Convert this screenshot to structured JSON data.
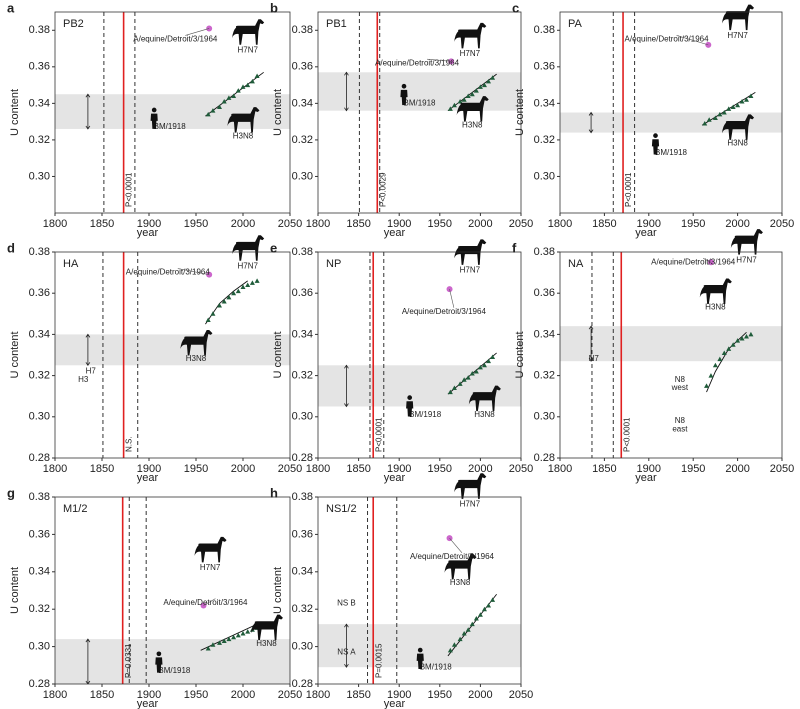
{
  "chart_data": [
    {
      "type": "scatter",
      "letter": "a",
      "title": "PB2",
      "xlabel": "year",
      "ylabel": "U content",
      "xlim": [
        1800,
        2050
      ],
      "xticks": [
        1800,
        1850,
        1900,
        1950,
        2000,
        2050
      ],
      "ylim": [
        0.28,
        0.39
      ],
      "yticks": [
        {
          "value": 0.3,
          "label": "0.30"
        },
        0.32,
        0.34,
        0.36,
        0.38
      ],
      "band": [
        0.326,
        0.345
      ],
      "dashed_lines": [
        1852,
        1885
      ],
      "red_line": 1873,
      "p_label": "P<0.0001",
      "series": [
        {
          "name": "H3N8",
          "color": "#1f5c3a",
          "x": [
            1963,
            1968,
            1975,
            1980,
            1985,
            1990,
            1995,
            2000,
            2005,
            2010,
            2015
          ],
          "values": [
            0.334,
            0.336,
            0.338,
            0.341,
            0.343,
            0.344,
            0.347,
            0.349,
            0.35,
            0.352,
            0.355
          ]
        },
        {
          "name": "A/equine/Detroit/3/1964",
          "color": "#cc66cc",
          "x": [
            1964
          ],
          "values": [
            0.381
          ]
        }
      ],
      "fit_x": [
        1960,
        2022
      ],
      "fit_values": [
        0.333,
        0.357
      ],
      "annotations": [
        "H7N7",
        "BM/1918"
      ]
    },
    {
      "type": "scatter",
      "letter": "b",
      "title": "PB1",
      "xlabel": "year",
      "ylabel": "U content",
      "xlim": [
        1800,
        2050
      ],
      "xticks": [
        1800,
        1850,
        1900,
        1950,
        2000,
        2050
      ],
      "ylim": [
        0.28,
        0.39
      ],
      "yticks": [
        {
          "value": 0.3,
          "label": "0.30"
        },
        0.32,
        0.34,
        0.36,
        0.38
      ],
      "band": [
        0.336,
        0.357
      ],
      "dashed_lines": [
        1851,
        1876
      ],
      "red_line": 1873,
      "p_label": "P<0.0029",
      "series": [
        {
          "name": "H3N8",
          "color": "#1f5c3a",
          "x": [
            1963,
            1968,
            1975,
            1980,
            1985,
            1990,
            1995,
            2000,
            2005,
            2010,
            2015
          ],
          "values": [
            0.337,
            0.339,
            0.341,
            0.342,
            0.344,
            0.345,
            0.347,
            0.349,
            0.35,
            0.352,
            0.354
          ]
        },
        {
          "name": "A/equine/Detroit/3/1964",
          "color": "#cc66cc",
          "x": [
            1964
          ],
          "values": [
            0.363
          ]
        }
      ],
      "fit_x": [
        1960,
        2020
      ],
      "fit_values": [
        0.336,
        0.356
      ],
      "annotations": [
        "H7N7",
        "BM/1918"
      ]
    },
    {
      "type": "scatter",
      "letter": "c",
      "title": "PA",
      "xlabel": "year",
      "ylabel": "U content",
      "xlim": [
        1800,
        2050
      ],
      "xticks": [
        1800,
        1850,
        1900,
        1950,
        2000,
        2050
      ],
      "ylim": [
        0.28,
        0.39
      ],
      "yticks": [
        {
          "value": 0.3,
          "label": "0.30"
        },
        0.32,
        0.34,
        0.36,
        0.38
      ],
      "band": [
        0.324,
        0.335
      ],
      "dashed_lines": [
        1860,
        1884
      ],
      "red_line": 1871,
      "p_label": "P<0.0001",
      "series": [
        {
          "name": "H3N8",
          "color": "#1f5c3a",
          "x": [
            1963,
            1968,
            1975,
            1980,
            1985,
            1990,
            1995,
            2000,
            2005,
            2010,
            2015
          ],
          "values": [
            0.329,
            0.331,
            0.332,
            0.334,
            0.335,
            0.337,
            0.338,
            0.339,
            0.341,
            0.342,
            0.344
          ]
        },
        {
          "name": "A/equine/Detroit/3/1964",
          "color": "#cc66cc",
          "x": [
            1967
          ],
          "values": [
            0.372
          ]
        }
      ],
      "fit_x": [
        1960,
        2020
      ],
      "fit_values": [
        0.328,
        0.346
      ],
      "annotations": [
        "H7N7",
        "BM/1918"
      ]
    },
    {
      "type": "scatter",
      "letter": "d",
      "title": "HA",
      "xlabel": "year",
      "ylabel": "U content",
      "xlim": [
        1800,
        2050
      ],
      "xticks": [
        1800,
        1850,
        1900,
        1950,
        2000,
        2050
      ],
      "ylim": [
        0.28,
        0.38
      ],
      "yticks": [
        0.28,
        {
          "value": 0.3,
          "label": "0.30"
        },
        0.32,
        0.34,
        0.36,
        0.38
      ],
      "band": [
        0.325,
        0.34
      ],
      "dashed_lines": [
        1851,
        1888
      ],
      "red_line": 1873,
      "p_label": "N.S.",
      "series": [
        {
          "name": "H3N8",
          "color": "#1f5c3a",
          "x": [
            1963,
            1968,
            1975,
            1980,
            1985,
            1990,
            1995,
            2000,
            2005,
            2010,
            2015
          ],
          "values": [
            0.347,
            0.35,
            0.354,
            0.356,
            0.358,
            0.36,
            0.361,
            0.363,
            0.364,
            0.365,
            0.366
          ]
        },
        {
          "name": "A/equine/Detroit/3/1964",
          "color": "#cc66cc",
          "x": [
            1964
          ],
          "values": [
            0.369
          ]
        }
      ],
      "fit_x": [
        1960,
        1975,
        1990,
        2005
      ],
      "fit_values": [
        0.345,
        0.355,
        0.361,
        0.366
      ],
      "annotations": [
        "H7N7",
        "H7",
        "H3"
      ]
    },
    {
      "type": "scatter",
      "letter": "e",
      "title": "NP",
      "xlabel": "year",
      "ylabel": "U content",
      "xlim": [
        1800,
        2050
      ],
      "xticks": [
        1800,
        1850,
        1900,
        1950,
        2000,
        2050
      ],
      "ylim": [
        0.28,
        0.38
      ],
      "yticks": [
        0.28,
        {
          "value": 0.3,
          "label": "0.30"
        },
        0.32,
        0.34,
        0.36,
        0.38
      ],
      "band": [
        0.305,
        0.325
      ],
      "dashed_lines": [
        1864,
        1881
      ],
      "red_line": 1868,
      "p_label": "P<0.0001",
      "series": [
        {
          "name": "H3N8",
          "color": "#1f5c3a",
          "x": [
            1963,
            1968,
            1975,
            1980,
            1985,
            1990,
            1995,
            2000,
            2005,
            2010,
            2015
          ],
          "values": [
            0.312,
            0.314,
            0.316,
            0.318,
            0.319,
            0.321,
            0.322,
            0.324,
            0.325,
            0.327,
            0.329
          ]
        },
        {
          "name": "A/equine/Detroit/3/1964",
          "color": "#cc66cc",
          "x": [
            1962
          ],
          "values": [
            0.362
          ]
        }
      ],
      "fit_x": [
        1960,
        2020
      ],
      "fit_values": [
        0.311,
        0.331
      ],
      "annotations": [
        "H7N7",
        "BM/1918"
      ]
    },
    {
      "type": "scatter",
      "letter": "f",
      "title": "NA",
      "xlabel": "year",
      "ylabel": "U content",
      "xlim": [
        1800,
        2050
      ],
      "xticks": [
        1800,
        1850,
        1900,
        1950,
        2000,
        2050
      ],
      "ylim": [
        0.28,
        0.38
      ],
      "yticks": [
        0.28,
        {
          "value": 0.3,
          "label": "0.30"
        },
        0.32,
        0.34,
        0.36,
        0.38
      ],
      "band": [
        0.327,
        0.344
      ],
      "dashed_lines": [
        1836,
        1860
      ],
      "red_line": 1869,
      "p_label": "P<0.0001",
      "series": [
        {
          "name": "H3N8",
          "color": "#1f5c3a",
          "x": [
            1965,
            1970,
            1975,
            1980,
            1985,
            1990,
            1995,
            2000,
            2005,
            2010,
            2015
          ],
          "values": [
            0.315,
            0.32,
            0.325,
            0.328,
            0.331,
            0.333,
            0.335,
            0.337,
            0.338,
            0.339,
            0.34
          ]
        },
        {
          "name": "A/equine/Detroit/3/1964",
          "color": "#cc66cc",
          "x": [
            1970
          ],
          "values": [
            0.375
          ]
        }
      ],
      "fit_x": [
        1965,
        1975,
        1990,
        2010
      ],
      "fit_values": [
        0.312,
        0.322,
        0.333,
        0.341
      ],
      "annotations": [
        "H7N7",
        "N7",
        "N8",
        "west",
        "N8",
        "east"
      ]
    },
    {
      "type": "scatter",
      "letter": "g",
      "title": "M1/2",
      "xlabel": "year",
      "ylabel": "U content",
      "xlim": [
        1800,
        2050
      ],
      "xticks": [
        1800,
        1850,
        1900,
        1950,
        2000,
        2050
      ],
      "ylim": [
        0.28,
        0.38
      ],
      "yticks": [
        0.28,
        {
          "value": 0.3,
          "label": "0.30"
        },
        0.32,
        0.34,
        0.36,
        0.38
      ],
      "band": [
        0.28,
        0.304
      ],
      "dashed_lines": [
        1879,
        1897
      ],
      "red_line": 1872,
      "p_label": "P=0.0331",
      "series": [
        {
          "name": "H3N8",
          "color": "#1f5c3a",
          "x": [
            1963,
            1968,
            1975,
            1980,
            1985,
            1990,
            1995,
            2000,
            2005,
            2010,
            2015
          ],
          "values": [
            0.299,
            0.301,
            0.302,
            0.303,
            0.304,
            0.305,
            0.306,
            0.307,
            0.308,
            0.309,
            0.31
          ]
        },
        {
          "name": "A/equine/Detroit/3/1964",
          "color": "#cc66cc",
          "x": [
            1958
          ],
          "values": [
            0.322
          ]
        }
      ],
      "fit_x": [
        1955,
        2015
      ],
      "fit_values": [
        0.298,
        0.312
      ],
      "annotations": [
        "H7N7",
        "BM/1918"
      ]
    },
    {
      "type": "scatter",
      "letter": "h",
      "title": "NS1/2",
      "xlabel": "year",
      "ylabel": "U content",
      "xlim": [
        1800,
        2050
      ],
      "xticks": [
        1800,
        1850,
        1900,
        1950,
        2000,
        2050
      ],
      "ylim": [
        0.28,
        0.38
      ],
      "yticks": [
        0.28,
        {
          "value": 0.3,
          "label": "0.30"
        },
        0.32,
        0.34,
        0.36,
        0.38
      ],
      "band": [
        0.289,
        0.312
      ],
      "dashed_lines": [
        1861,
        1897
      ],
      "red_line": 1868,
      "p_label": "P=0.0015",
      "series": [
        {
          "name": "H3N8",
          "color": "#1f5c3a",
          "x": [
            1963,
            1968,
            1975,
            1980,
            1985,
            1990,
            1995,
            2000,
            2005,
            2010,
            2015
          ],
          "values": [
            0.298,
            0.301,
            0.304,
            0.307,
            0.309,
            0.312,
            0.315,
            0.317,
            0.32,
            0.322,
            0.325
          ]
        },
        {
          "name": "A/equine/Detroit/3/1964",
          "color": "#cc66cc",
          "x": [
            1962
          ],
          "values": [
            0.358
          ]
        }
      ],
      "fit_x": [
        1960,
        2020
      ],
      "fit_values": [
        0.295,
        0.328
      ],
      "annotations": [
        "H7N7",
        "BM/1918",
        "NS B",
        "NS A"
      ]
    }
  ]
}
